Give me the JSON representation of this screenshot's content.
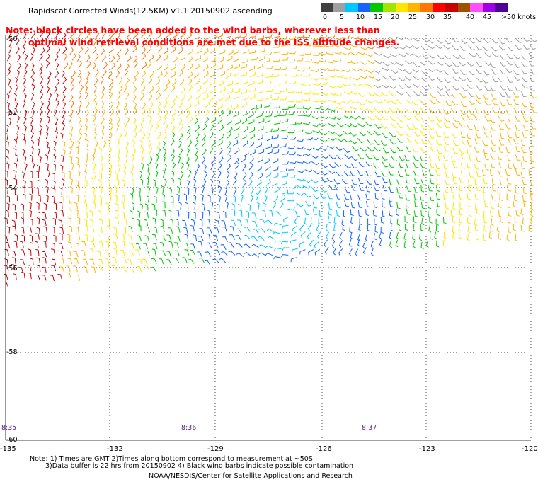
{
  "header": {
    "title": "Rapidscat Corrected Winds(12.5KM) v1.1 20150902 ascending"
  },
  "notice": {
    "line1": "Note: black circles have been added to the wind barbs, wherever less than",
    "line2": "optimal wind retrieval conditions are met due to the ISS altitude changes."
  },
  "colorbar": {
    "colors": [
      "#404040",
      "#a0a0a0",
      "#00c8ff",
      "#1464ff",
      "#00c800",
      "#a0e600",
      "#ffe600",
      "#ffb400",
      "#ff7800",
      "#ff0000",
      "#c80000",
      "#a05000",
      "#ff50ff",
      "#a000e6",
      "#500096"
    ],
    "labels": [
      "0",
      "5",
      "10",
      "15",
      "20",
      "25",
      "30",
      "35",
      "40",
      "45",
      ">50 knots"
    ]
  },
  "axes": {
    "lat_labels": [
      "-50",
      "-52",
      "-54",
      "-56",
      "-58",
      "-60"
    ],
    "lon_labels": [
      "-135",
      "-132",
      "-129",
      "-126",
      "-123",
      "-120"
    ]
  },
  "time_marks": [
    "8:35",
    "8:36",
    "8:37"
  ],
  "footer": {
    "note1": "Note: 1) Times are GMT 2)Times along bottom correspond to measurement at ~50S",
    "note2": "3)Data buffer is 22 hrs from 20150902 4) Black wind barbs indicate possible contamination",
    "credit": "NOAA/NESDIS/Center for Satellite Applications and Research"
  }
}
